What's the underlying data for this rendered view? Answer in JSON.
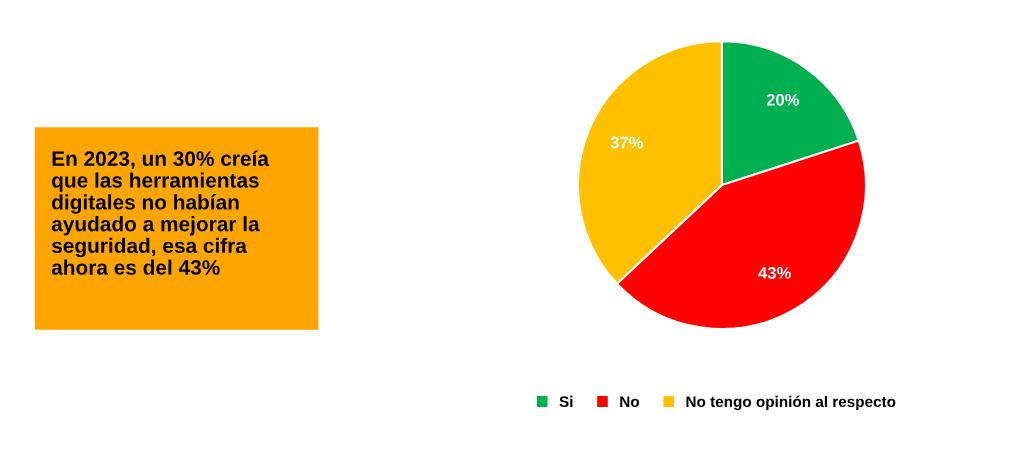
{
  "chart_data": {
    "type": "pie",
    "categories": [
      "Si",
      "No",
      "No tengo opinión al respecto"
    ],
    "values": [
      20,
      43,
      37
    ],
    "colors": [
      "#00b050",
      "#ff0000",
      "#ffc000"
    ],
    "value_labels": [
      "20%",
      "43%",
      "37%"
    ],
    "legend": "bottom",
    "annotations": [
      "En 2023, un 30% creía que las herramientas digitales no habían ayudado a mejorar la seguridad, esa cifra ahora es del 43%"
    ]
  }
}
